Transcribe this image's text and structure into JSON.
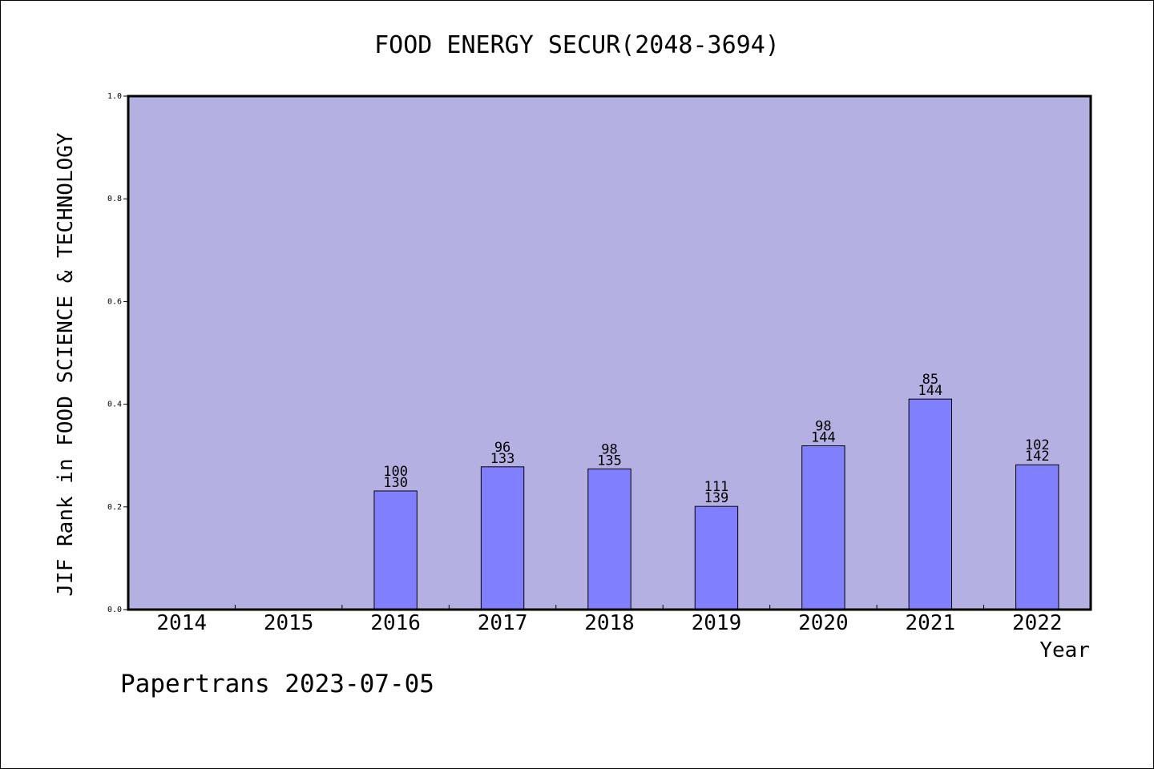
{
  "chart_data": {
    "type": "bar",
    "title": "FOOD ENERGY SECUR(2048-3694)",
    "xlabel": "Year",
    "ylabel": "JIF Rank in FOOD SCIENCE & TECHNOLOGY",
    "ylim": [
      0,
      1.0
    ],
    "yticks": [
      "0.0",
      "0.2",
      "0.4",
      "0.6",
      "0.8",
      "1.0"
    ],
    "categories": [
      "2014",
      "2015",
      "2016",
      "2017",
      "2018",
      "2019",
      "2020",
      "2021",
      "2022"
    ],
    "values": [
      null,
      null,
      0.231,
      0.278,
      0.274,
      0.201,
      0.319,
      0.41,
      0.282
    ],
    "rank_labels": [
      "",
      "",
      "100",
      "96",
      "98",
      "111",
      "98",
      "85",
      "102"
    ],
    "total_labels": [
      "",
      "",
      "130",
      "133",
      "135",
      "139",
      "144",
      "144",
      "142"
    ],
    "grid": false,
    "colors": {
      "plot_background": "#b5b0e2",
      "bar_fill": "#8080ff",
      "axis": "#000000"
    }
  },
  "footer": {
    "credit": "Papertrans 2023-07-05"
  }
}
